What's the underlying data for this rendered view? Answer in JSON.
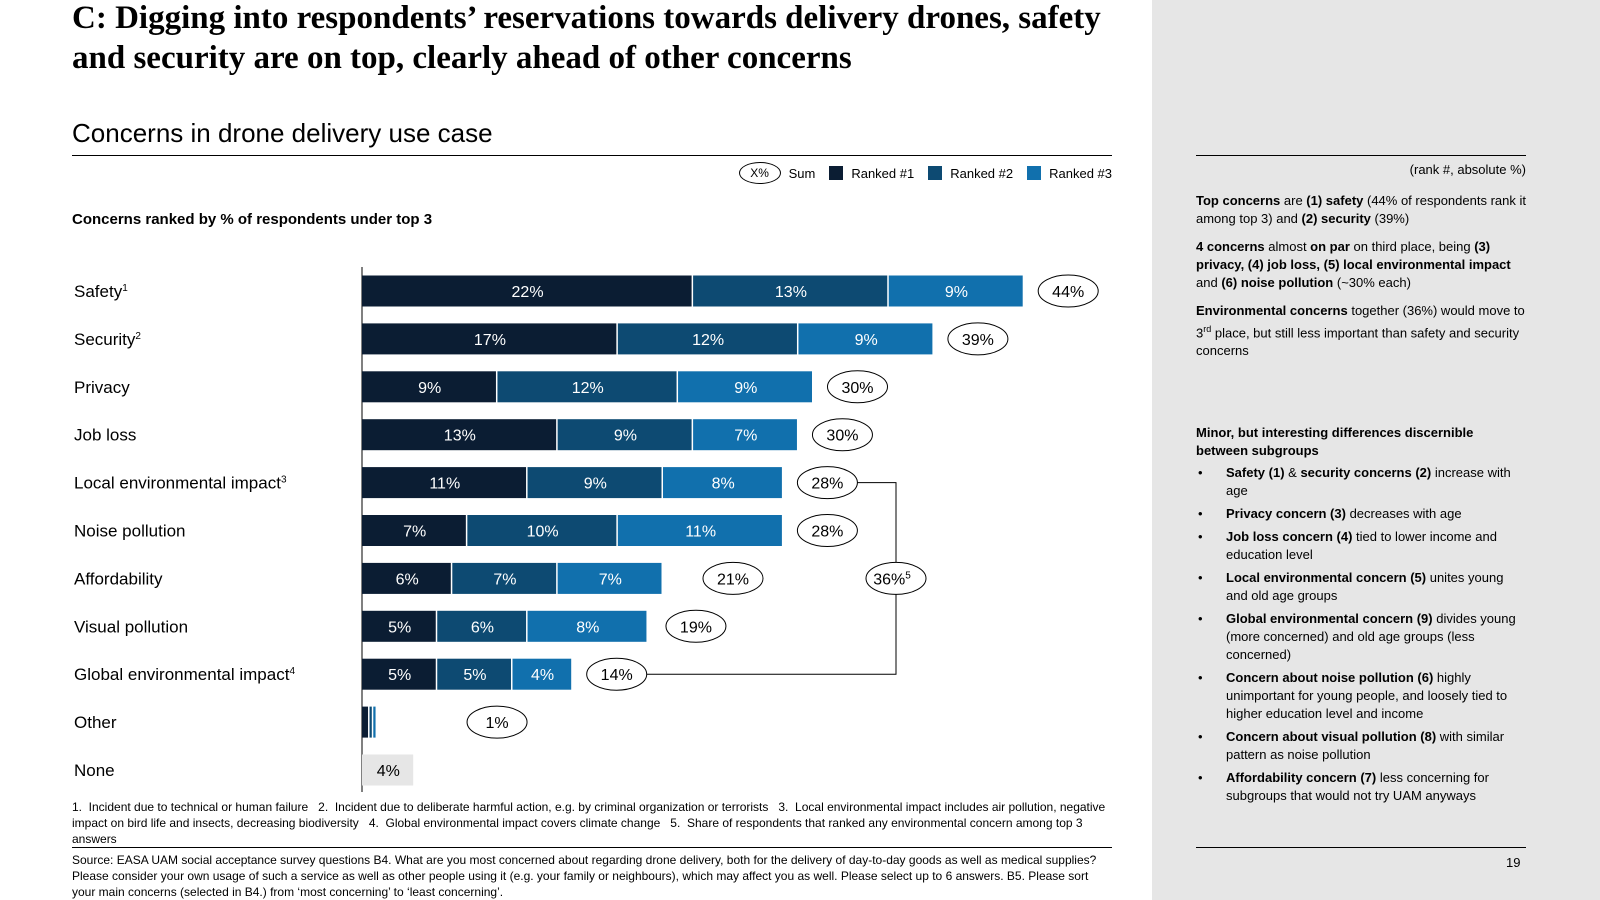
{
  "title": "C: Digging into respondents’ reservations towards delivery drones, safety and security are on top, clearly ahead of other concerns",
  "subtitle": "Concerns in drone delivery use case",
  "legend": {
    "oval": "X%",
    "sum": "Sum",
    "ranked1": "Ranked #1",
    "ranked2": "Ranked #2",
    "ranked3": "Ranked #3"
  },
  "colors": {
    "rank1": "#0b1d33",
    "rank2": "#0d4a72",
    "rank3": "#1170ad",
    "none": "#e6e6e6",
    "panel": "#e6e6e6"
  },
  "chart_data": {
    "type": "bar",
    "orientation": "horizontal",
    "stacked": true,
    "title": "Concerns ranked by % of respondents under top 3",
    "xlabel": "",
    "ylabel": "",
    "xlim": [
      0,
      49
    ],
    "categories": [
      "Safety",
      "Security",
      "Privacy",
      "Job loss",
      "Local environmental impact",
      "Noise pollution",
      "Affordability",
      "Visual pollution",
      "Global environmental impact",
      "Other",
      "None"
    ],
    "footnote_marks": [
      "1",
      "2",
      "",
      "",
      "3",
      "",
      "",
      "",
      "4",
      "",
      ""
    ],
    "series": [
      {
        "name": "Ranked #1",
        "values": [
          22,
          17,
          9,
          13,
          11,
          7,
          6,
          5,
          5,
          0.5,
          0
        ],
        "labels": [
          "22%",
          "17%",
          "9%",
          "13%",
          "11%",
          "7%",
          "6%",
          "5%",
          "5%",
          "",
          ""
        ]
      },
      {
        "name": "Ranked #2",
        "values": [
          13,
          12,
          12,
          9,
          9,
          10,
          7,
          6,
          5,
          0.25,
          0
        ],
        "labels": [
          "13%",
          "12%",
          "12%",
          "9%",
          "9%",
          "10%",
          "7%",
          "6%",
          "5%",
          "",
          ""
        ]
      },
      {
        "name": "Ranked #3",
        "values": [
          9,
          9,
          9,
          7,
          8,
          11,
          7,
          8,
          4,
          0.25,
          0
        ],
        "labels": [
          "9%",
          "9%",
          "9%",
          "7%",
          "8%",
          "11%",
          "7%",
          "8%",
          "4%",
          "",
          ""
        ]
      },
      {
        "name": "None",
        "values": [
          0,
          0,
          0,
          0,
          0,
          0,
          0,
          0,
          0,
          0,
          3.5
        ],
        "labels": [
          "",
          "",
          "",
          "",
          "",
          "",
          "",
          "",
          "",
          "",
          "4%"
        ]
      }
    ],
    "sums": [
      "44%",
      "39%",
      "30%",
      "30%",
      "28%",
      "28%",
      "21%",
      "19%",
      "14%",
      "1%",
      ""
    ],
    "environmental_bracket": {
      "label": "36%",
      "footnote": "5",
      "groups": [
        "Local environmental impact",
        "Global environmental impact"
      ]
    }
  },
  "footnotes": "1.  Incident due to technical or human failure   2.  Incident due to deliberate harmful action, e.g. by criminal organization or terrorists   3.  Local environmental impact includes air pollution, negative impact on bird life and insects, decreasing biodiversity   4.  Global environmental impact covers climate change   5.  Share of respondents that ranked any environmental concern among top 3 answers",
  "source": "Source: EASA UAM social acceptance survey questions B4. What are you most concerned about regarding drone delivery, both for the delivery of day-to-day goods as well as medical supplies? Please consider your own usage of such a service as well as other people using it (e.g. your family or neighbours), which may affect you as well. Please select up to 6 answers. B5. Please sort your main concerns (selected in B4.) from ‘most concerning’ to ‘least concerning’.",
  "right_panel": {
    "label": "(rank #, absolute %)",
    "p1": [
      "Top concerns",
      " are ",
      "(1) safety",
      " (44% of respondents rank it among top 3) and ",
      "(2) security",
      " (39%)"
    ],
    "p2": [
      "4 concerns",
      " almost ",
      "on par",
      " on third place, being ",
      "(3) privacy, (4) job loss, (5) local environmental impact",
      " and ",
      "(6) noise pollution",
      " (~30% each)"
    ],
    "p3": [
      "Environmental concerns",
      " together (36%) would move to 3",
      "rd",
      " place, but still less important than safety and security concerns"
    ],
    "heading": "Minor, but interesting differences discernible between subgroups",
    "bullets": [
      [
        "Safety (1)",
        " & ",
        "security concerns (2)",
        " increase with age"
      ],
      [
        "Privacy concern (3)",
        " decreases with age"
      ],
      [
        "Job loss concern (4)",
        " tied to lower income and education level"
      ],
      [
        "Local environmental concern (5)",
        " unites young and old age groups"
      ],
      [
        "Global environmental concern (9)",
        " divides young (more concerned) and old age groups (less concerned)"
      ],
      [
        "Concern about noise pollution (6)",
        " highly unimportant for young people, and loosely tied to higher education level and income"
      ],
      [
        "Concern about visual pollution (8)",
        " with similar pattern as noise pollution"
      ],
      [
        "Affordability concern (7)",
        " less concerning for subgroups that would not try UAM anyways"
      ]
    ]
  },
  "page_number": "19"
}
